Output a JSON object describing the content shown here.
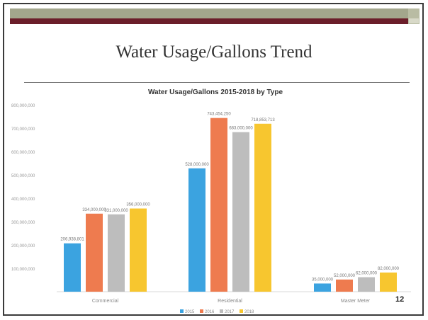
{
  "slide": {
    "title": "Water Usage/Gallons Trend",
    "page_number": "12"
  },
  "chart_data": {
    "type": "bar",
    "title": "Water Usage/Gallons 2015-2018 by Type",
    "categories": [
      "Commercial",
      "Residential",
      "Master Meter"
    ],
    "series": [
      {
        "name": "2015",
        "color": "#3ba3e0",
        "values": [
          206938801,
          528000000,
          35000000
        ]
      },
      {
        "name": "2016",
        "color": "#ee7b4f",
        "values": [
          334000000,
          743454250,
          52000000
        ]
      },
      {
        "name": "2017",
        "color": "#bdbdbd",
        "values": [
          331000000,
          683000000,
          62000000
        ]
      },
      {
        "name": "2018",
        "color": "#f7c62f",
        "values": [
          356000000,
          718853713,
          82000000
        ]
      }
    ],
    "data_labels": [
      [
        "206,938,801",
        "334,000,000",
        "331,000,000",
        "356,000,000"
      ],
      [
        "528,000,000",
        "743,454,250",
        "683,000,000",
        "718,853,713"
      ],
      [
        "35,000,000",
        "52,000,000",
        "62,000,000",
        "82,000,000"
      ]
    ],
    "y_ticks": [
      100000000,
      200000000,
      300000000,
      400000000,
      500000000,
      600000000,
      700000000,
      800000000
    ],
    "y_tick_labels": [
      "100,000,000",
      "200,000,000",
      "300,000,000",
      "400,000,000",
      "500,000,000",
      "600,000,000",
      "700,000,000",
      "800,000,000"
    ],
    "ylim": [
      0,
      800000000
    ],
    "grid": false,
    "legend_position": "bottom"
  }
}
